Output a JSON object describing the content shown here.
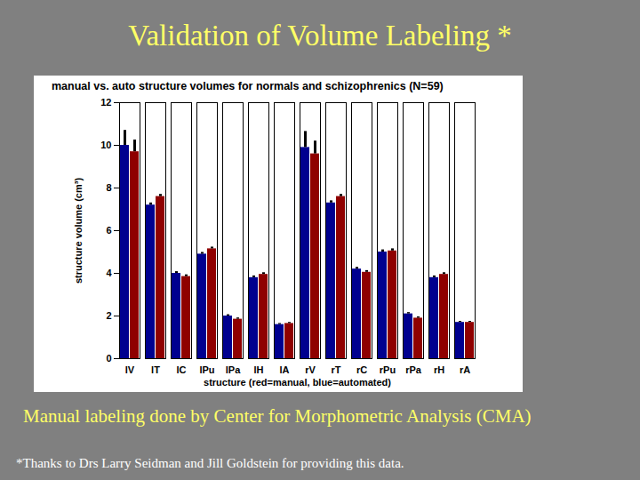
{
  "slide": {
    "title": "Validation of Volume Labeling *",
    "caption": "Manual labeling done by Center for Morphometric Analysis (CMA)",
    "footnote": "*Thanks to Drs Larry Seidman and Jill Goldstein for providing this data."
  },
  "chart_data": {
    "type": "bar",
    "title": "manual vs. auto structure volumes for normals and schizophrenics (N=59)",
    "x_label": "structure (red=manual, blue=automated)",
    "y_label": "structure volume (cm³)",
    "categories": [
      "lV",
      "lT",
      "lC",
      "lPu",
      "lPa",
      "lH",
      "lA",
      "rV",
      "rT",
      "rC",
      "rPu",
      "rPa",
      "rH",
      "rA"
    ],
    "series": [
      {
        "name": "automated",
        "color": "#00008f",
        "values": [
          10.0,
          7.2,
          4.0,
          4.9,
          2.0,
          3.8,
          1.6,
          9.9,
          7.3,
          4.2,
          5.0,
          2.1,
          3.8,
          1.7
        ],
        "errors": [
          0.7,
          0.1,
          0.08,
          0.08,
          0.06,
          0.08,
          0.05,
          0.75,
          0.1,
          0.08,
          0.1,
          0.06,
          0.08,
          0.05
        ]
      },
      {
        "name": "manual",
        "color": "#8f0000",
        "values": [
          9.7,
          7.6,
          3.85,
          5.15,
          1.85,
          3.95,
          1.65,
          9.6,
          7.6,
          4.05,
          5.05,
          1.9,
          3.95,
          1.7
        ],
        "errors": [
          0.55,
          0.1,
          0.08,
          0.08,
          0.06,
          0.08,
          0.05,
          0.6,
          0.1,
          0.08,
          0.1,
          0.06,
          0.08,
          0.05
        ]
      }
    ],
    "ylim": [
      0,
      12
    ],
    "yticks": [
      0,
      2,
      4,
      6,
      8,
      10,
      12
    ]
  }
}
